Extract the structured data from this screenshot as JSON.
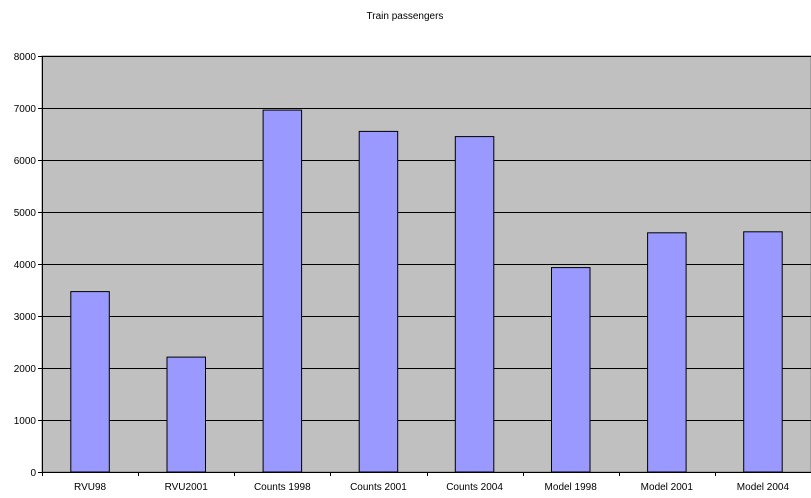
{
  "chart_data": {
    "type": "bar",
    "title": "Train passengers",
    "xlabel": "",
    "ylabel": "",
    "categories": [
      "RVU98",
      "RVU2001",
      "Counts 1998",
      "Counts 2001",
      "Counts 2004",
      "Model 1998",
      "Model 2001",
      "Model 2004"
    ],
    "values": [
      3470,
      2210,
      6960,
      6550,
      6450,
      3930,
      4600,
      4620
    ],
    "ylim": [
      0,
      8000
    ],
    "yticks": [
      0,
      1000,
      2000,
      3000,
      4000,
      5000,
      6000,
      7000,
      8000
    ],
    "grid": true,
    "legend": "none",
    "colors": {
      "bar_fill": "#9999ff",
      "bar_stroke": "#000000",
      "plot_background": "#c0c0c0",
      "gridline": "#000000"
    }
  }
}
